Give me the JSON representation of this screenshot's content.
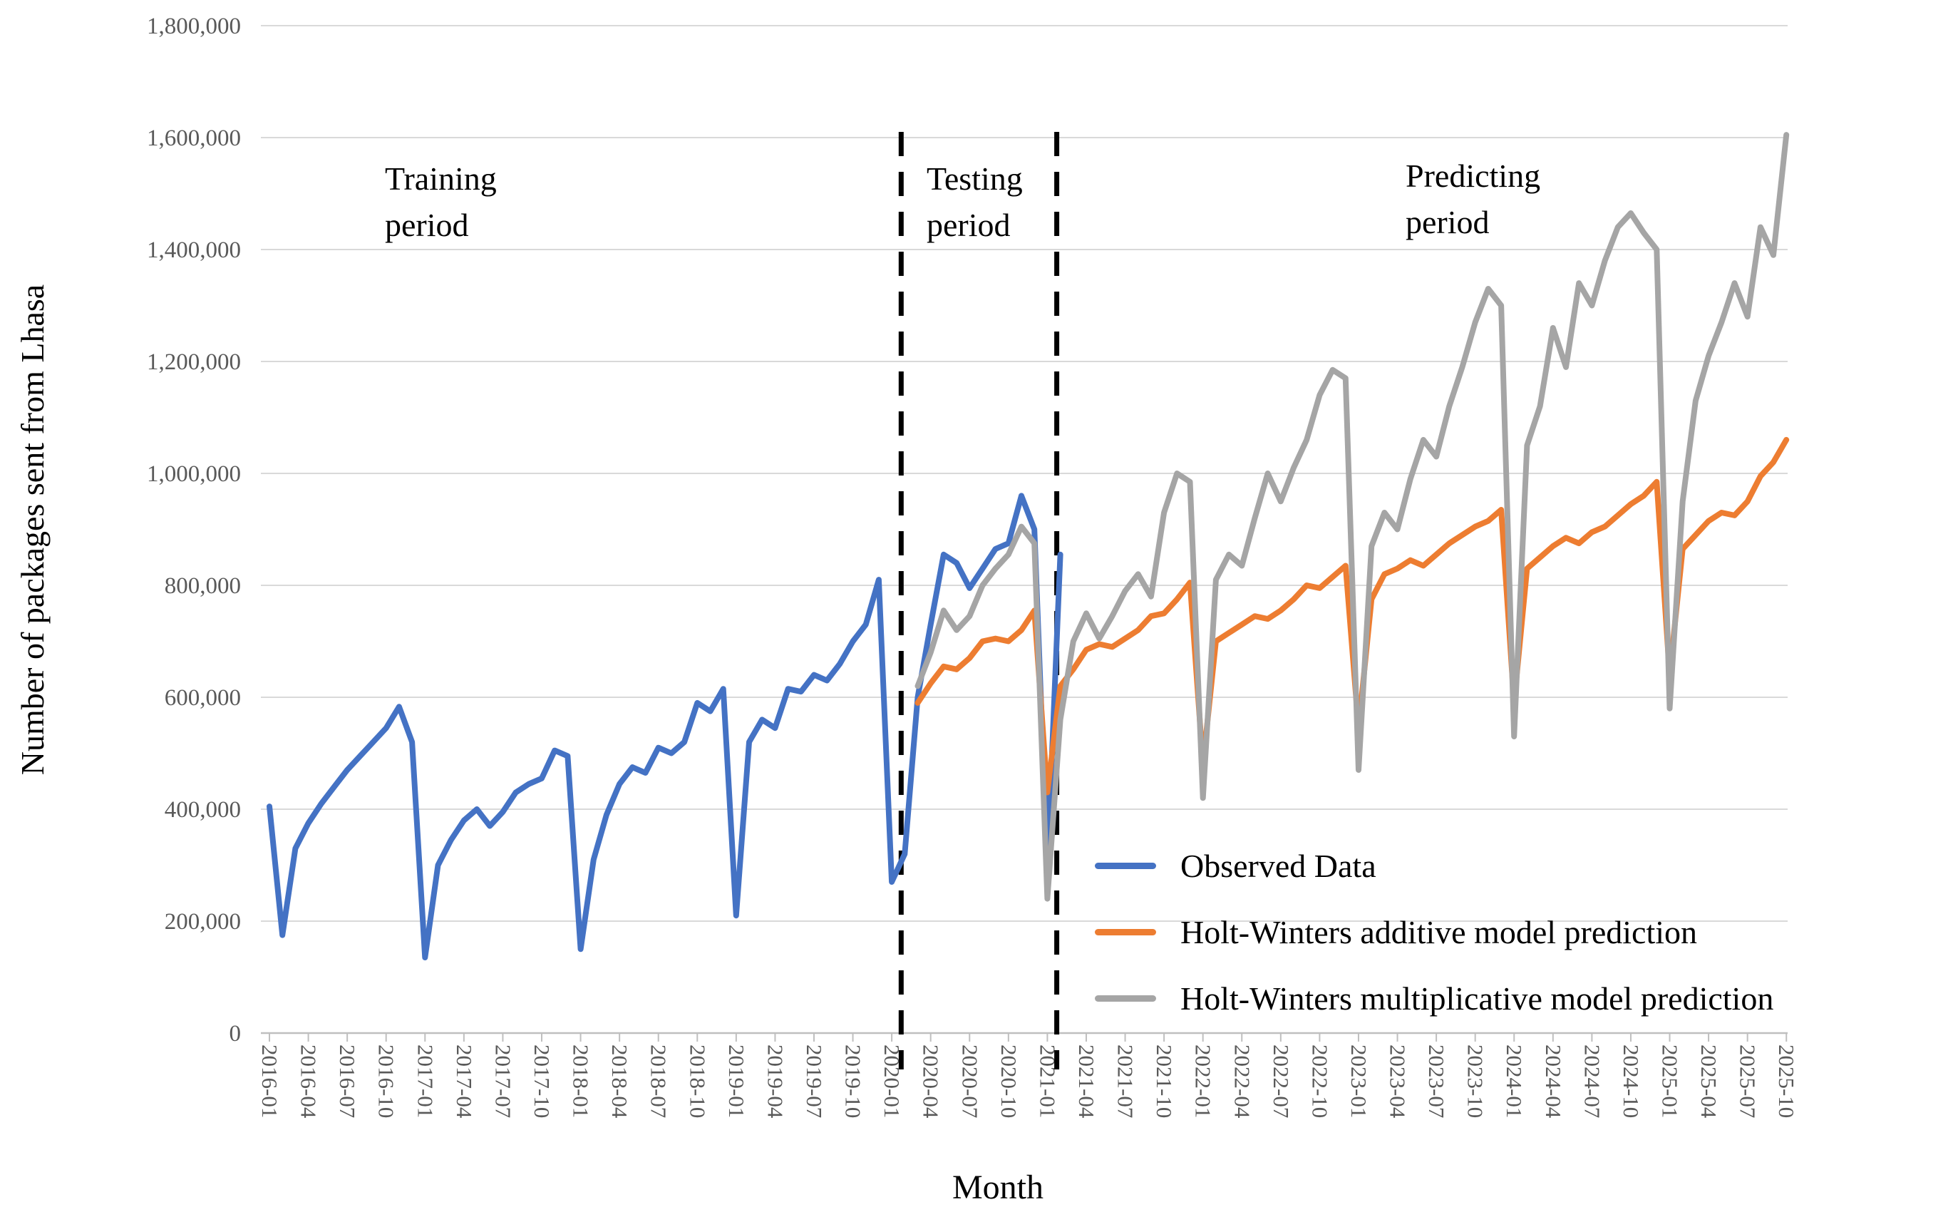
{
  "y_axis": {
    "title": "Number of packages sent from Lhasa",
    "tick_labels": [
      "0",
      "200,000",
      "400,000",
      "600,000",
      "800,000",
      "1,000,000",
      "1,200,000",
      "1,400,000",
      "1,600,000",
      "1,800,000"
    ],
    "tick_values": [
      0,
      200000,
      400000,
      600000,
      800000,
      1000000,
      1200000,
      1400000,
      1600000,
      1800000
    ]
  },
  "x_axis": {
    "title": "Month",
    "tick_every_n_months": 3
  },
  "periods": [
    {
      "key": "training",
      "line1": "Training",
      "line2": "period"
    },
    {
      "key": "testing",
      "line1": "Testing",
      "line2": "period"
    },
    {
      "key": "predicting",
      "line1": "Predicting",
      "line2": "period"
    }
  ],
  "boundaries": {
    "testing_start_month": "2020-02",
    "predicting_start_month": "2021-02"
  },
  "legend": [
    {
      "label": "Observed Data",
      "color": "#4472C4"
    },
    {
      "label": "Holt-Winters additive model prediction",
      "color": "#ED7D31"
    },
    {
      "label": "Holt-Winters multiplicative model prediction",
      "color": "#A5A5A5"
    }
  ],
  "colors": {
    "observed": "#4472C4",
    "additive": "#ED7D31",
    "multiplicative": "#A5A5A5",
    "gridline": "#D9D9D9",
    "axis": "#BFBFBF",
    "tick_text": "#595959",
    "boundary_line": "#000000"
  },
  "chart_data": {
    "type": "line",
    "title": "",
    "xlabel": "Month",
    "ylabel": "Number of packages sent from Lhasa",
    "ylim": [
      0,
      1800000
    ],
    "grid": true,
    "legend_position": "inside-bottom-right",
    "x": [
      "2016-01",
      "2016-02",
      "2016-03",
      "2016-04",
      "2016-05",
      "2016-06",
      "2016-07",
      "2016-08",
      "2016-09",
      "2016-10",
      "2016-11",
      "2016-12",
      "2017-01",
      "2017-02",
      "2017-03",
      "2017-04",
      "2017-05",
      "2017-06",
      "2017-07",
      "2017-08",
      "2017-09",
      "2017-10",
      "2017-11",
      "2017-12",
      "2018-01",
      "2018-02",
      "2018-03",
      "2018-04",
      "2018-05",
      "2018-06",
      "2018-07",
      "2018-08",
      "2018-09",
      "2018-10",
      "2018-11",
      "2018-12",
      "2019-01",
      "2019-02",
      "2019-03",
      "2019-04",
      "2019-05",
      "2019-06",
      "2019-07",
      "2019-08",
      "2019-09",
      "2019-10",
      "2019-11",
      "2019-12",
      "2020-01",
      "2020-02",
      "2020-03",
      "2020-04",
      "2020-05",
      "2020-06",
      "2020-07",
      "2020-08",
      "2020-09",
      "2020-10",
      "2020-11",
      "2020-12",
      "2021-01",
      "2021-02",
      "2021-03",
      "2021-04",
      "2021-05",
      "2021-06",
      "2021-07",
      "2021-08",
      "2021-09",
      "2021-10",
      "2021-11",
      "2021-12",
      "2022-01",
      "2022-02",
      "2022-03",
      "2022-04",
      "2022-05",
      "2022-06",
      "2022-07",
      "2022-08",
      "2022-09",
      "2022-10",
      "2022-11",
      "2022-12",
      "2023-01",
      "2023-02",
      "2023-03",
      "2023-04",
      "2023-05",
      "2023-06",
      "2023-07",
      "2023-08",
      "2023-09",
      "2023-10",
      "2023-11",
      "2023-12",
      "2024-01",
      "2024-02",
      "2024-03",
      "2024-04",
      "2024-05",
      "2024-06",
      "2024-07",
      "2024-08",
      "2024-09",
      "2024-10",
      "2024-11",
      "2024-12",
      "2025-01",
      "2025-02",
      "2025-03",
      "2025-04",
      "2025-05",
      "2025-06",
      "2025-07",
      "2025-08",
      "2025-09",
      "2025-10"
    ],
    "series": [
      {
        "key": "observed",
        "name": "Observed Data",
        "values": [
          405000,
          175000,
          330000,
          375000,
          410000,
          440000,
          470000,
          495000,
          520000,
          545000,
          583000,
          520000,
          135000,
          300000,
          345000,
          380000,
          400000,
          370000,
          395000,
          430000,
          445000,
          455000,
          505000,
          495000,
          150000,
          310000,
          390000,
          445000,
          475000,
          465000,
          510000,
          500000,
          520000,
          590000,
          575000,
          615000,
          210000,
          520000,
          560000,
          545000,
          615000,
          610000,
          640000,
          630000,
          660000,
          700000,
          730000,
          810000,
          270000,
          320000,
          600000,
          730000,
          855000,
          840000,
          795000,
          830000,
          865000,
          875000,
          960000,
          900000,
          300000,
          855000,
          null,
          null,
          null,
          null,
          null,
          null,
          null,
          null,
          null,
          null,
          null,
          null,
          null,
          null,
          null,
          null,
          null,
          null,
          null,
          null,
          null,
          null,
          null,
          null,
          null,
          null,
          null,
          null,
          null,
          null,
          null,
          null,
          null,
          null,
          null,
          null,
          null,
          null,
          null,
          null,
          null,
          null,
          null,
          null,
          null,
          null,
          null,
          null,
          null,
          null,
          null,
          null,
          null,
          null,
          null,
          null
        ]
      },
      {
        "key": "additive",
        "name": "Holt-Winters additive model prediction",
        "values": [
          null,
          null,
          null,
          null,
          null,
          null,
          null,
          null,
          null,
          null,
          null,
          null,
          null,
          null,
          null,
          null,
          null,
          null,
          null,
          null,
          null,
          null,
          null,
          null,
          null,
          null,
          null,
          null,
          null,
          null,
          null,
          null,
          null,
          null,
          null,
          null,
          null,
          null,
          null,
          null,
          null,
          null,
          null,
          null,
          null,
          null,
          null,
          null,
          null,
          null,
          590000,
          625000,
          655000,
          650000,
          670000,
          700000,
          705000,
          700000,
          720000,
          755000,
          430000,
          620000,
          650000,
          685000,
          695000,
          690000,
          705000,
          720000,
          745000,
          750000,
          775000,
          805000,
          480000,
          700000,
          715000,
          730000,
          745000,
          740000,
          755000,
          775000,
          800000,
          795000,
          815000,
          835000,
          545000,
          775000,
          820000,
          830000,
          845000,
          835000,
          855000,
          875000,
          890000,
          905000,
          915000,
          935000,
          590000,
          830000,
          850000,
          870000,
          885000,
          875000,
          895000,
          905000,
          925000,
          945000,
          960000,
          985000,
          640000,
          865000,
          890000,
          915000,
          930000,
          925000,
          950000,
          995000,
          1020000,
          1060000
        ]
      },
      {
        "key": "multiplicative",
        "name": "Holt-Winters multiplicative model prediction",
        "values": [
          null,
          null,
          null,
          null,
          null,
          null,
          null,
          null,
          null,
          null,
          null,
          null,
          null,
          null,
          null,
          null,
          null,
          null,
          null,
          null,
          null,
          null,
          null,
          null,
          null,
          null,
          null,
          null,
          null,
          null,
          null,
          null,
          null,
          null,
          null,
          null,
          null,
          null,
          null,
          null,
          null,
          null,
          null,
          null,
          null,
          null,
          null,
          null,
          null,
          null,
          620000,
          680000,
          755000,
          720000,
          745000,
          800000,
          830000,
          855000,
          905000,
          875000,
          240000,
          560000,
          700000,
          750000,
          705000,
          745000,
          790000,
          820000,
          780000,
          930000,
          1000000,
          985000,
          420000,
          810000,
          855000,
          835000,
          920000,
          1000000,
          950000,
          1010000,
          1060000,
          1140000,
          1185000,
          1170000,
          470000,
          870000,
          930000,
          900000,
          990000,
          1060000,
          1030000,
          1120000,
          1190000,
          1270000,
          1330000,
          1300000,
          530000,
          1050000,
          1120000,
          1260000,
          1190000,
          1340000,
          1300000,
          1380000,
          1440000,
          1465000,
          1430000,
          1400000,
          580000,
          950000,
          1130000,
          1210000,
          1270000,
          1340000,
          1280000,
          1440000,
          1390000,
          1605000
        ]
      }
    ]
  }
}
